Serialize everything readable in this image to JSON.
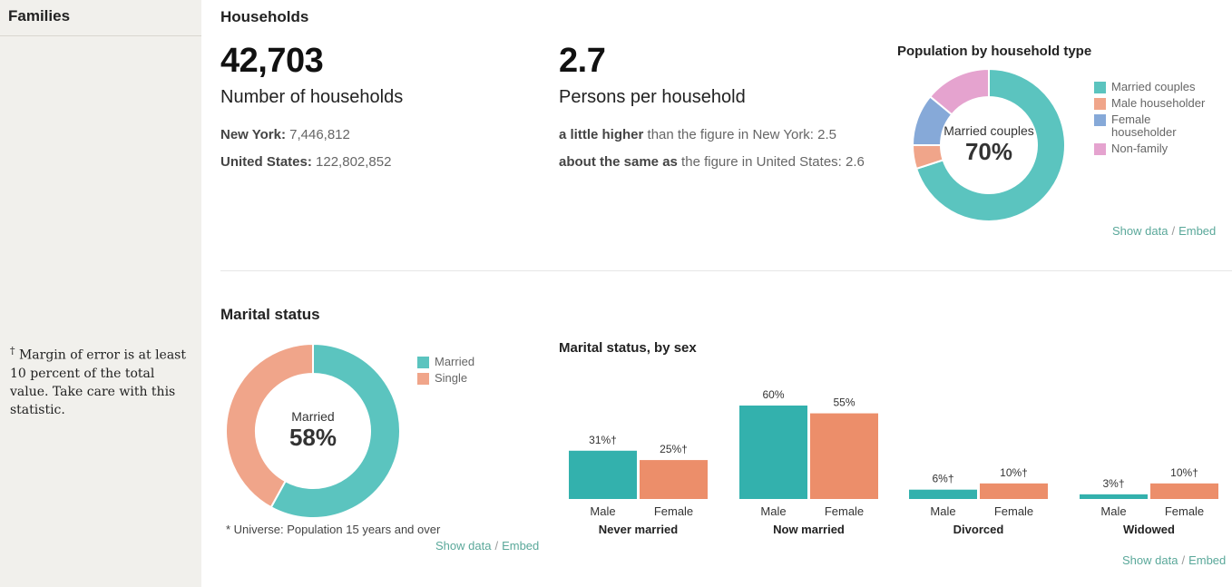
{
  "sidebar": {
    "title": "Families",
    "note_mark": "†",
    "note": " Margin of error is at least 10 percent of the total value. Take care with this statistic."
  },
  "households": {
    "heading": "Households",
    "count": {
      "value": "42,703",
      "label": "Number of households",
      "comparisons": [
        {
          "place": "New York:",
          "value": "7,446,812"
        },
        {
          "place": "United States:",
          "value": "122,802,852"
        }
      ]
    },
    "persons": {
      "value": "2.7",
      "label": "Persons per household",
      "comparisons": [
        {
          "qualifier": "a little higher",
          "text": " than the figure in New York: 2.5"
        },
        {
          "qualifier": "about the same as",
          "text": " the figure in United States: 2.6"
        }
      ]
    }
  },
  "links": {
    "show_data": "Show data",
    "sep": "/",
    "embed": "Embed"
  },
  "marital": {
    "heading": "Marital status",
    "universe": "* Universe: Population 15 years and over"
  },
  "colors": {
    "teal": "#5bc4bf",
    "salmon": "#f0a58a",
    "blue": "#86a9d8",
    "pink": "#e5a3cf",
    "bar_teal": "#33b1ad",
    "bar_salmon": "#ec8e6a"
  },
  "chart_data": [
    {
      "type": "pie",
      "title": "Population by household type",
      "labels": [
        "Married couples",
        "Male householder",
        "Female householder",
        "Non-family"
      ],
      "values": [
        70,
        5,
        11,
        14
      ],
      "center_label": "Married couples",
      "center_value": "70%"
    },
    {
      "type": "pie",
      "title": "Marital status",
      "labels": [
        "Married",
        "Single"
      ],
      "values": [
        58,
        42
      ],
      "center_label": "Married",
      "center_value": "58%"
    },
    {
      "type": "bar",
      "title": "Marital status, by sex",
      "categories": [
        "Never married",
        "Now married",
        "Divorced",
        "Widowed"
      ],
      "bar_labels": [
        "Male",
        "Female"
      ],
      "series": [
        {
          "name": "Male",
          "values": [
            31,
            60,
            6,
            3
          ],
          "labels": [
            "31%†",
            "60%",
            "6%†",
            "3%†"
          ]
        },
        {
          "name": "Female",
          "values": [
            25,
            55,
            10,
            10
          ],
          "labels": [
            "25%†",
            "55%",
            "10%†",
            "10%†"
          ]
        }
      ],
      "ylim": [
        0,
        60
      ]
    }
  ]
}
